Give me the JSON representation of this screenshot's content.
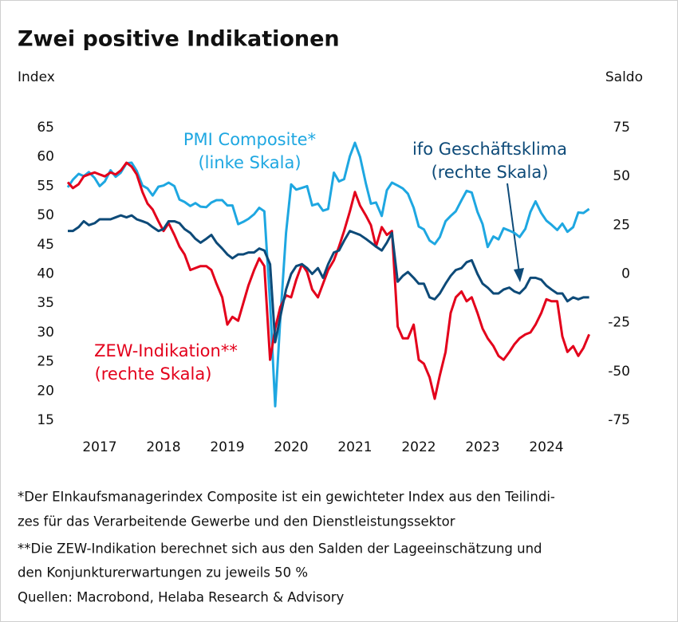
{
  "chart_data": {
    "type": "line",
    "title": "Zwei positive Indikationen",
    "y_label": "Index",
    "y2_label": "Saldo",
    "x": [
      2017,
      2017.08,
      2017.17,
      2017.25,
      2017.33,
      2017.42,
      2017.5,
      2017.58,
      2017.67,
      2017.75,
      2017.83,
      2017.92,
      2018,
      2018.08,
      2018.17,
      2018.25,
      2018.33,
      2018.42,
      2018.5,
      2018.58,
      2018.67,
      2018.75,
      2018.83,
      2018.92,
      2019,
      2019.08,
      2019.17,
      2019.25,
      2019.33,
      2019.42,
      2019.5,
      2019.58,
      2019.67,
      2019.75,
      2019.83,
      2019.92,
      2020,
      2020.08,
      2020.17,
      2020.25,
      2020.33,
      2020.42,
      2020.5,
      2020.58,
      2020.67,
      2020.75,
      2020.83,
      2020.92,
      2021,
      2021.08,
      2021.17,
      2021.25,
      2021.33,
      2021.42,
      2021.5,
      2021.58,
      2021.67,
      2021.75,
      2021.83,
      2021.92,
      2022,
      2022.08,
      2022.17,
      2022.25,
      2022.33,
      2022.42,
      2022.5,
      2022.58,
      2022.67,
      2022.75,
      2022.83,
      2022.92,
      2023,
      2023.08,
      2023.17,
      2023.25,
      2023.33,
      2023.42,
      2023.5,
      2023.58,
      2023.67,
      2023.75,
      2023.83,
      2023.92,
      2024,
      2024.08,
      2024.17,
      2024.25,
      2024.33,
      2024.42,
      2024.5,
      2024.58,
      2024.67,
      2024.75,
      2024.83,
      2024.92,
      2025,
      2025.08,
      2025.17
    ],
    "xlim": [
      2017,
      2025.25
    ],
    "xticks": [
      {
        "value": 2017.5,
        "label": "2017"
      },
      {
        "value": 2018.5,
        "label": "2018"
      },
      {
        "value": 2019.5,
        "label": "2019"
      },
      {
        "value": 2020.5,
        "label": "2020"
      },
      {
        "value": 2021.5,
        "label": "2021"
      },
      {
        "value": 2022.5,
        "label": "2022"
      },
      {
        "value": 2023.5,
        "label": "2023"
      },
      {
        "value": 2024.5,
        "label": "2024"
      }
    ],
    "ylim": [
      15,
      65
    ],
    "yticks": [
      15,
      20,
      25,
      30,
      35,
      40,
      45,
      50,
      55,
      60,
      65
    ],
    "y2lim": [
      -75,
      75
    ],
    "y2ticks": [
      -75,
      -50,
      -25,
      0,
      25,
      50,
      75
    ],
    "grid": false,
    "series": [
      {
        "name": "PMI Composite*",
        "scale_label": "(linke Skala)",
        "color": "#1ea7e1",
        "values": [
          54.8,
          56.1,
          57.1,
          56.7,
          57.4,
          56.4,
          55.0,
          55.8,
          57.7,
          56.6,
          57.3,
          58.9,
          59.0,
          57.6,
          55.1,
          54.6,
          53.4,
          54.9,
          55.1,
          55.6,
          55.0,
          52.7,
          52.3,
          51.6,
          52.1,
          51.5,
          51.4,
          52.2,
          52.6,
          52.6,
          51.7,
          51.7,
          48.5,
          48.9,
          49.4,
          50.2,
          51.3,
          50.7,
          35.0,
          17.4,
          32.3,
          47.0,
          55.3,
          54.4,
          54.7,
          55.0,
          51.7,
          52.0,
          50.8,
          51.1,
          57.3,
          55.8,
          56.2,
          60.1,
          62.4,
          60.0,
          55.5,
          52.0,
          52.2,
          49.9,
          54.3,
          55.6,
          55.1,
          54.6,
          53.7,
          51.3,
          48.1,
          47.6,
          45.7,
          45.1,
          46.3,
          49.0,
          49.9,
          50.7,
          52.6,
          54.2,
          53.9,
          50.6,
          48.5,
          44.6,
          46.4,
          45.9,
          47.8,
          47.4,
          47.0,
          46.3,
          47.7,
          50.6,
          52.4,
          50.4,
          49.1,
          48.4,
          47.5,
          48.6,
          47.2,
          48.0,
          50.5,
          50.4,
          51.1
        ]
      },
      {
        "name": "ifo Geschäftsklima",
        "scale_label": "(rechte Skala)",
        "color": "#0d4a78",
        "axis": "y2",
        "values": [
          22,
          22,
          24,
          27,
          25,
          26,
          28,
          28,
          28,
          29,
          30,
          29,
          30,
          28,
          27,
          26,
          24,
          22,
          23,
          27,
          27,
          26,
          23,
          21,
          18,
          16,
          18,
          20,
          16,
          13,
          10,
          8,
          10,
          10,
          11,
          11,
          13,
          12,
          5,
          -35,
          -22,
          -8,
          0,
          4,
          5,
          3,
          0,
          3,
          -2,
          5,
          11,
          12,
          17,
          22,
          21,
          20,
          18,
          16,
          14,
          12,
          16,
          21,
          -4,
          -1,
          1,
          -2,
          -5,
          -5,
          -12,
          -13,
          -10,
          -5,
          -1,
          2,
          3,
          6,
          7,
          0,
          -5,
          -7,
          -10,
          -10,
          -8,
          -7,
          -9,
          -10,
          -7,
          -2,
          -2,
          -3,
          -6,
          -8,
          -10,
          -10,
          -14,
          -12,
          -13,
          -12,
          -12
        ]
      },
      {
        "name": "ZEW-Indikation**",
        "scale_label": "(rechte Skala)",
        "color": "#e3001b",
        "axis": "y2",
        "values": [
          47,
          44,
          46,
          50,
          51,
          52,
          51,
          50,
          52,
          51,
          53,
          57,
          55,
          51,
          42,
          36,
          33,
          27,
          22,
          26,
          20,
          14,
          10,
          2,
          3,
          4,
          4,
          2,
          -5,
          -12,
          -26,
          -22,
          -24,
          -15,
          -6,
          2,
          8,
          4,
          -44,
          -28,
          -17,
          -11,
          -12,
          -3,
          5,
          1,
          -8,
          -12,
          -5,
          2,
          7,
          14,
          22,
          32,
          42,
          35,
          30,
          25,
          14,
          24,
          20,
          22,
          -27,
          -33,
          -33,
          -26,
          -44,
          -46,
          -53,
          -64,
          -52,
          -40,
          -20,
          -12,
          -9,
          -14,
          -12,
          -20,
          -28,
          -33,
          -37,
          -42,
          -44,
          -40,
          -36,
          -33,
          -31,
          -30,
          -26,
          -20,
          -13,
          -14,
          -14,
          -32,
          -40,
          -37,
          -42,
          -38,
          -31
        ]
      }
    ],
    "footnotes": [
      "*Der EInkaufsmanagerindex Composite ist ein gewichteter Index aus den Teilindi-",
      "zes für das Verarbeitende Gewerbe und den Dienstleistungssektor",
      "**Die ZEW-Indikation berechnet sich aus den Salden der Lageeinschätzung und",
      "den Konjunkturerwartungen zu jeweils 50 %",
      "Quellen: Macrobond, Helaba Research & Advisory"
    ]
  }
}
